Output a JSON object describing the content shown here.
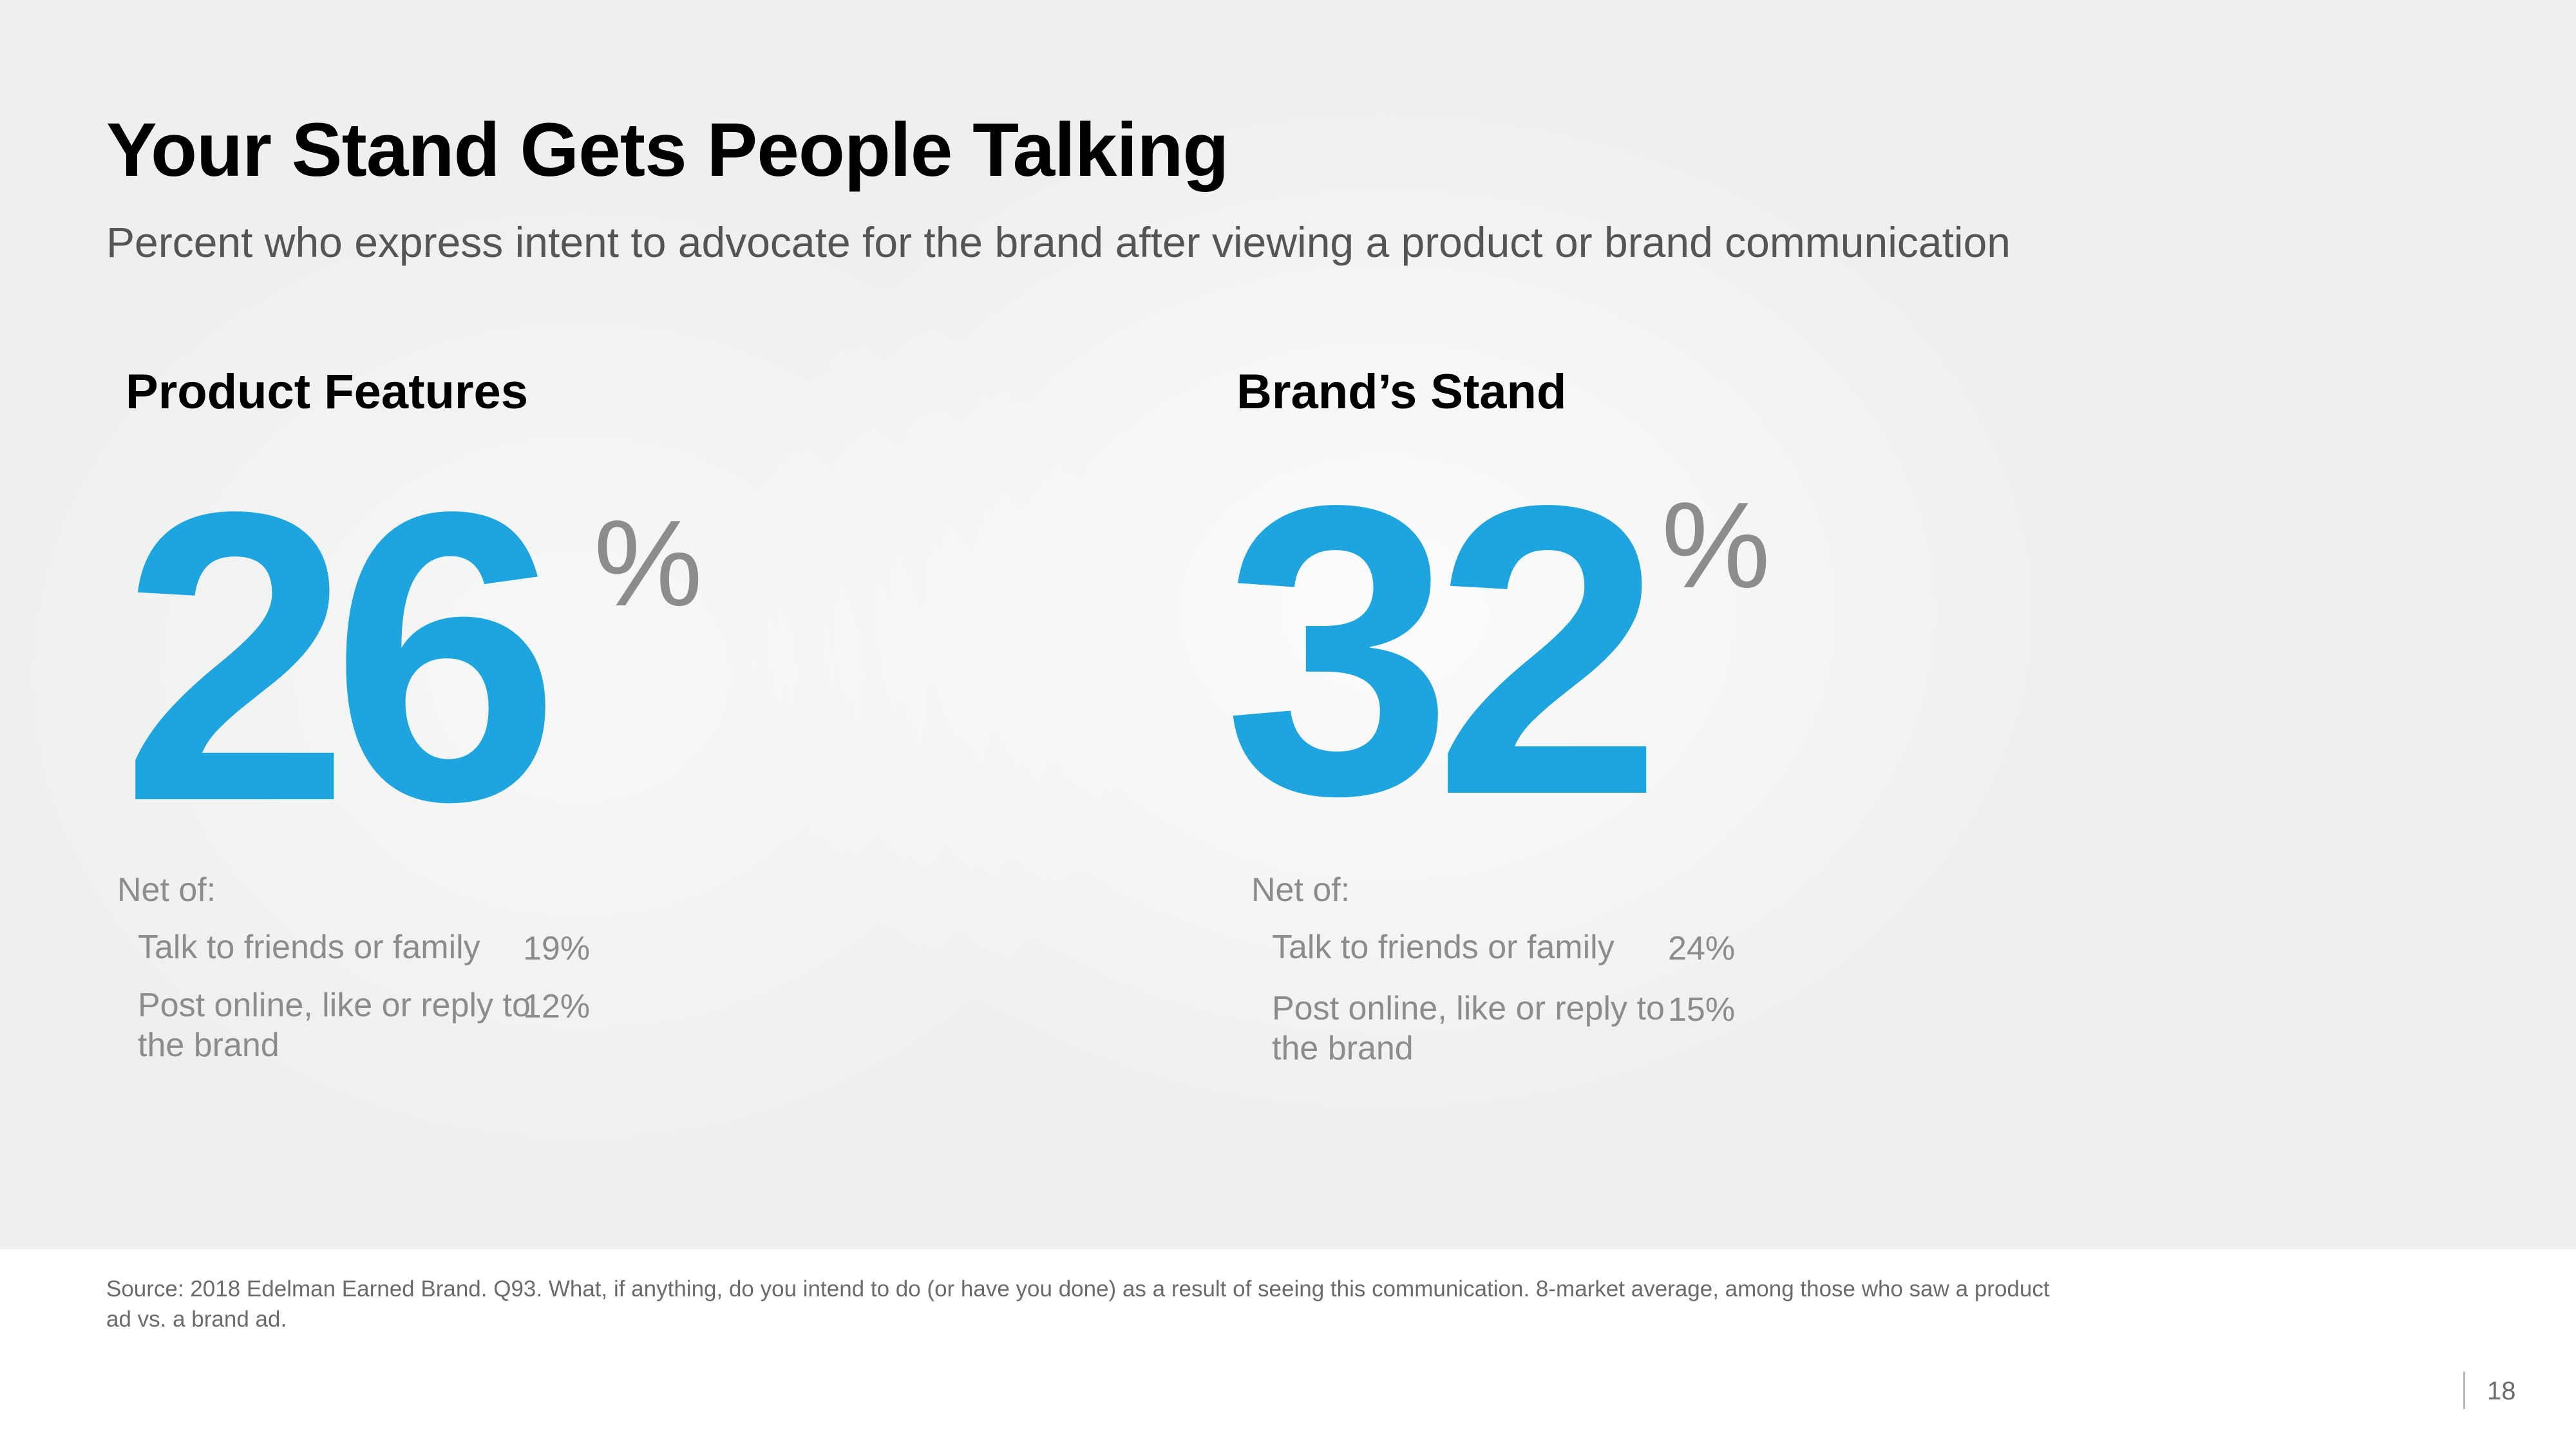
{
  "slide": {
    "title": "Your Stand Gets People Talking",
    "subtitle": "Percent who express intent to advocate for the brand after viewing a product or brand communication",
    "accent_color": "#1ea5e0",
    "page_number": "18"
  },
  "panels": [
    {
      "heading": "Product Features",
      "value": "26",
      "percent_sign": "%",
      "net_label": "Net of:",
      "items": [
        {
          "label": "Talk to friends or family",
          "value": "19%"
        },
        {
          "label": "Post online, like or reply to the brand",
          "value": "12%"
        }
      ]
    },
    {
      "heading": "Brand’s Stand",
      "value": "32",
      "percent_sign": "%",
      "net_label": "Net of:",
      "items": [
        {
          "label": "Talk to friends or family",
          "value": "24%"
        },
        {
          "label": "Post online, like or reply to the brand",
          "value": "15%"
        }
      ]
    }
  ],
  "footer": {
    "source": "Source: 2018 Edelman Earned Brand. Q93. What, if anything, do you intend to do (or have you done) as a result of seeing this communication. 8-market average, among those who saw a product ad vs. a brand ad."
  }
}
